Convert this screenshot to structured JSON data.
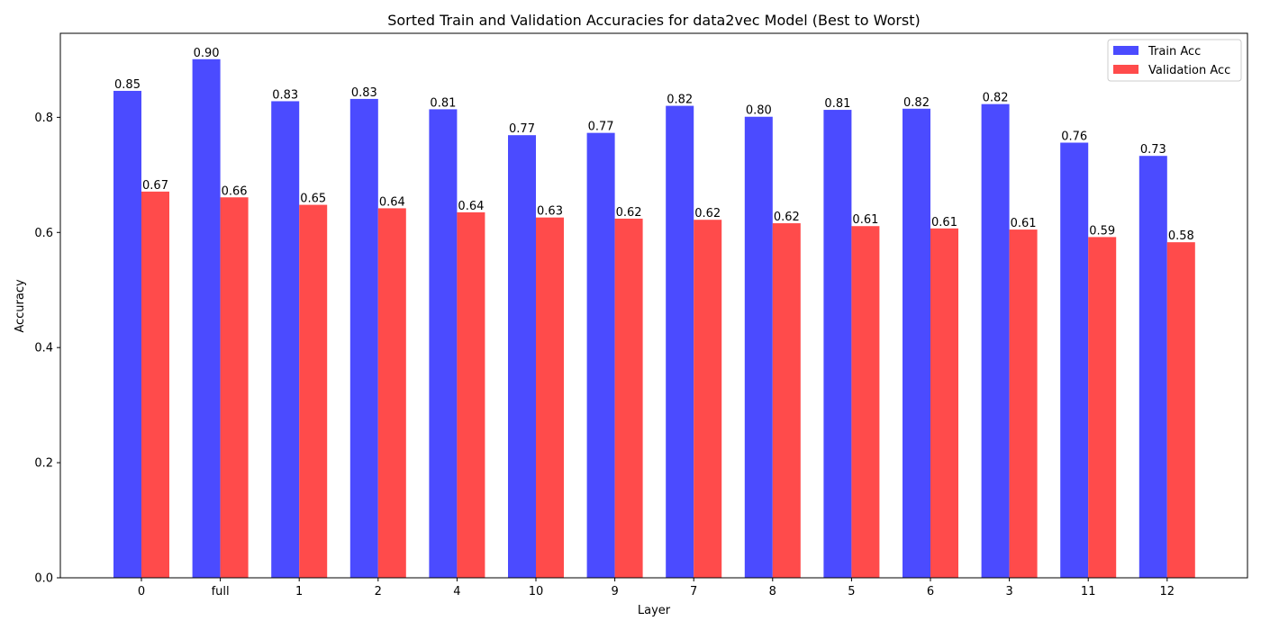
{
  "chart_data": {
    "type": "bar",
    "title": "Sorted Train and Validation Accuracies for data2vec Model (Best to Worst)",
    "xlabel": "Layer",
    "ylabel": "Accuracy",
    "categories": [
      "0",
      "full",
      "1",
      "2",
      "4",
      "10",
      "9",
      "7",
      "8",
      "5",
      "6",
      "3",
      "11",
      "12"
    ],
    "series": [
      {
        "name": "Train Acc",
        "color": "#4b4bff",
        "values": [
          0.846,
          0.901,
          0.828,
          0.832,
          0.814,
          0.769,
          0.773,
          0.82,
          0.801,
          0.813,
          0.815,
          0.823,
          0.756,
          0.733
        ],
        "labels": [
          "0.85",
          "0.90",
          "0.83",
          "0.83",
          "0.81",
          "0.77",
          "0.77",
          "0.82",
          "0.80",
          "0.81",
          "0.82",
          "0.82",
          "0.76",
          "0.73"
        ]
      },
      {
        "name": "Validation Acc",
        "color": "#ff4b4b",
        "values": [
          0.671,
          0.661,
          0.648,
          0.642,
          0.635,
          0.626,
          0.624,
          0.622,
          0.616,
          0.611,
          0.607,
          0.605,
          0.592,
          0.583
        ],
        "labels": [
          "0.67",
          "0.66",
          "0.65",
          "0.64",
          "0.64",
          "0.63",
          "0.62",
          "0.62",
          "0.62",
          "0.61",
          "0.61",
          "0.61",
          "0.59",
          "0.58"
        ]
      }
    ],
    "ylim": [
      0,
      0.946
    ],
    "yticks": [
      0.0,
      0.2,
      0.4,
      0.6,
      0.8
    ],
    "ytick_labels": [
      "0.0",
      "0.2",
      "0.4",
      "0.6",
      "0.8"
    ],
    "grid": false,
    "legend_position": "top-right"
  }
}
